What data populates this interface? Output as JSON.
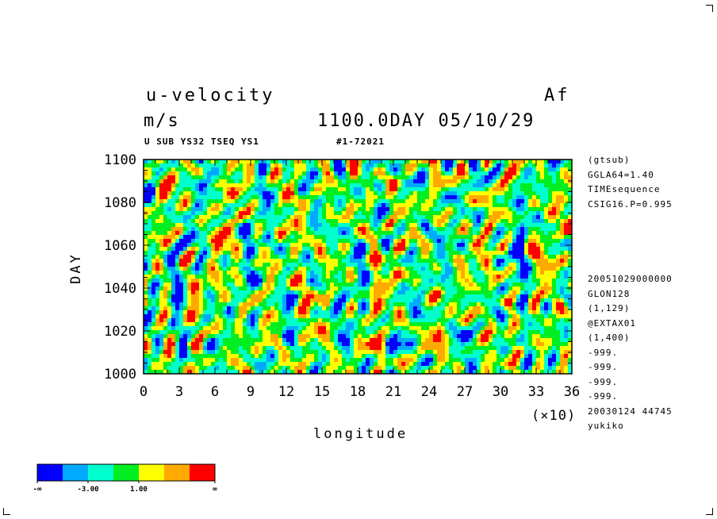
{
  "header": {
    "title": "u-velocity",
    "experiment": "Af",
    "units": "m/s",
    "time_label": "1100.0DAY 05/10/29",
    "subtitle_left": "U SUB YS32 TSEQ YS1",
    "subtitle_right": "#1-72021"
  },
  "side_info": {
    "top": [
      "(gtsub)",
      "GGLA64=1.40",
      "TIMEsequence",
      "CSIG16.P=0.995"
    ],
    "bottom": [
      "20051029000000",
      "GLON128",
      "(1,129)",
      "@EXTAX01",
      "(1,400)",
      "-999.",
      "-999.",
      "-999.",
      "-999.",
      "20030124  44745",
      "yukiko"
    ]
  },
  "axis_multiplier": "(×10)",
  "colorbar": {
    "colors": [
      "#0000ff",
      "#00aaff",
      "#00ffcc",
      "#00ee22",
      "#ffff00",
      "#ffaa00",
      "#ff0000"
    ],
    "labels": [
      "-∞",
      "-3.00",
      "1.00",
      "∞"
    ]
  },
  "chart_data": {
    "type": "heatmap",
    "xlabel": "longitude",
    "ylabel": "DAY",
    "x_ticks": [
      "0",
      "3",
      "6",
      "9",
      "12",
      "15",
      "18",
      "21",
      "24",
      "27",
      "30",
      "33",
      "36"
    ],
    "y_ticks": [
      "1000",
      "1020",
      "1040",
      "1060",
      "1080",
      "1100"
    ],
    "xlim": [
      0,
      360
    ],
    "ylim": [
      1000,
      1100
    ],
    "levels": [
      -3.0,
      1.0
    ],
    "grid": false
  }
}
